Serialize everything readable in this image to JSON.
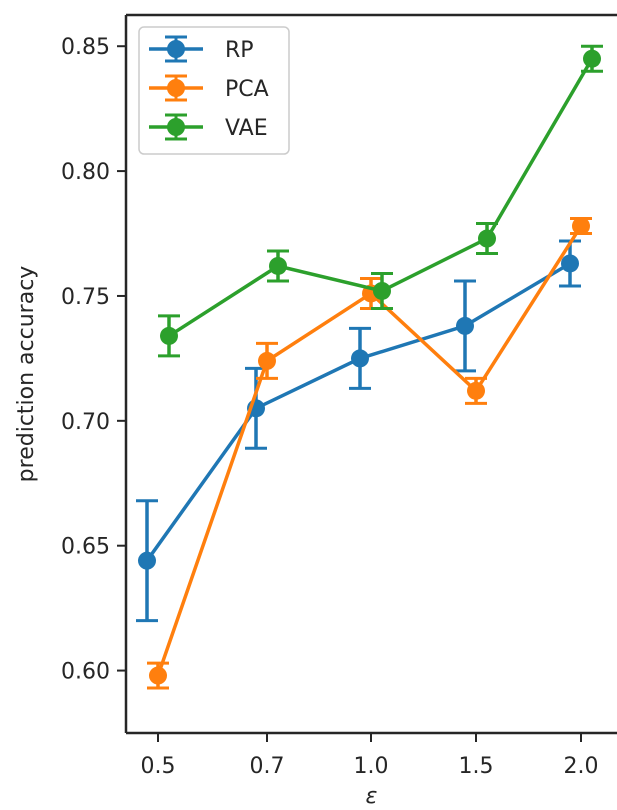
{
  "chart_data": {
    "type": "line",
    "title": "",
    "xlabel": "ε",
    "ylabel": "prediction accuracy",
    "categories": [
      "0.5",
      "0.7",
      "1.0",
      "1.5",
      "2.0"
    ],
    "ylim": [
      0.575,
      0.8625
    ],
    "yticks": [
      0.6,
      0.65,
      0.7,
      0.75,
      0.8,
      0.85
    ],
    "ytick_labels": [
      "0.60",
      "0.65",
      "0.70",
      "0.75",
      "0.80",
      "0.85"
    ],
    "grid": false,
    "legend_position": "top-left",
    "error_bars": true,
    "series": [
      {
        "name": "RP",
        "color": "#1f77b4",
        "values": [
          0.644,
          0.705,
          0.725,
          0.738,
          0.763
        ],
        "errors": [
          0.024,
          0.016,
          0.012,
          0.018,
          0.009
        ]
      },
      {
        "name": "PCA",
        "color": "#ff7f0e",
        "values": [
          0.598,
          0.724,
          0.751,
          0.712,
          0.778
        ],
        "errors": [
          0.005,
          0.007,
          0.006,
          0.005,
          0.003
        ]
      },
      {
        "name": "VAE",
        "color": "#2ca02c",
        "values": [
          0.734,
          0.762,
          0.752,
          0.773,
          0.845
        ],
        "errors": [
          0.008,
          0.006,
          0.007,
          0.006,
          0.005
        ]
      }
    ]
  }
}
